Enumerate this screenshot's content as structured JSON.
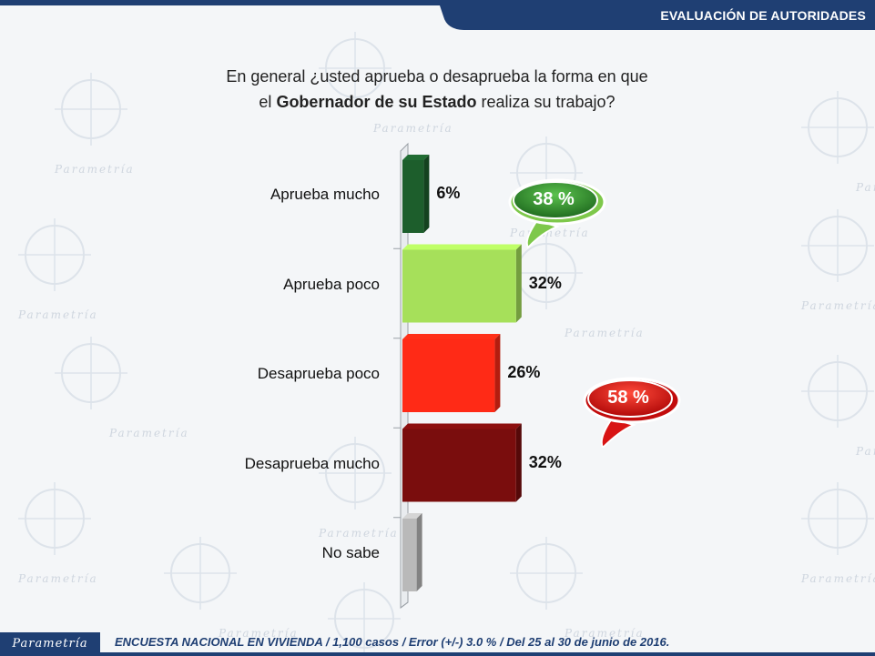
{
  "header": {
    "title": "EVALUACIÓN DE AUTORIDADES"
  },
  "question": {
    "line1": "En general ¿usted aprueba o desaprueba la forma en que",
    "line2_pre": "el ",
    "line2_bold": "Gobernador de su Estado",
    "line2_post": " realiza su trabajo?"
  },
  "chart_data": {
    "type": "bar",
    "orientation": "horizontal",
    "categories": [
      "Aprueba mucho",
      "Aprueba poco",
      "Desaprueba poco",
      "Desaprueba mucho",
      "No sabe"
    ],
    "values": [
      6,
      32,
      26,
      32,
      4
    ],
    "value_labels": [
      "6%",
      "32%",
      "26%",
      "32%",
      ""
    ],
    "unit": "%",
    "colors": [
      "#1d5e2c",
      "#a6e05a",
      "#ff2a16",
      "#7a0d0d",
      "#b9b9b9"
    ],
    "xlim": [
      0,
      100
    ],
    "title": "",
    "xlabel": "",
    "ylabel": "",
    "grid": false,
    "annotations": [
      {
        "text": "38 %",
        "color": "#2f8a2f",
        "group": "Aprueba"
      },
      {
        "text": "58 %",
        "color": "#d40e0e",
        "group": "Desaprueba"
      }
    ]
  },
  "background": {
    "watermark": "Parametría"
  },
  "footer": {
    "logo": "Parametría",
    "source": "ENCUESTA NACIONAL EN VIVIENDA / 1,100 casos / Error (+/-) 3.0 % / Del 25 al 30 de junio de 2016."
  }
}
